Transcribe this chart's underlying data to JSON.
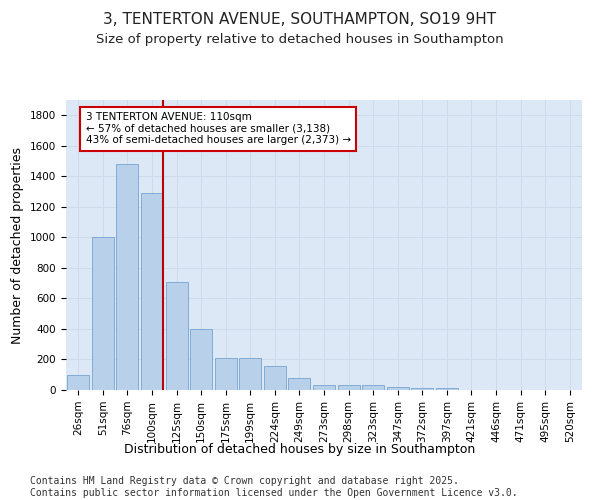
{
  "title": "3, TENTERTON AVENUE, SOUTHAMPTON, SO19 9HT",
  "subtitle": "Size of property relative to detached houses in Southampton",
  "xlabel": "Distribution of detached houses by size in Southampton",
  "ylabel": "Number of detached properties",
  "categories": [
    "26sqm",
    "51sqm",
    "76sqm",
    "100sqm",
    "125sqm",
    "150sqm",
    "175sqm",
    "199sqm",
    "224sqm",
    "249sqm",
    "273sqm",
    "298sqm",
    "323sqm",
    "347sqm",
    "372sqm",
    "397sqm",
    "421sqm",
    "446sqm",
    "471sqm",
    "495sqm",
    "520sqm"
  ],
  "values": [
    100,
    1000,
    1480,
    1290,
    710,
    400,
    210,
    210,
    155,
    80,
    30,
    30,
    30,
    20,
    15,
    10,
    0,
    0,
    0,
    0,
    0
  ],
  "bar_color": "#b8d0ea",
  "bar_edge_color": "#6699cc",
  "grid_color": "#ccdaeb",
  "background_color": "#dce8f5",
  "vline_color": "#bb0000",
  "vline_index": 3,
  "annotation_text": "3 TENTERTON AVENUE: 110sqm\n← 57% of detached houses are smaller (3,138)\n43% of semi-detached houses are larger (2,373) →",
  "annotation_box_color": "#cc0000",
  "ylim": [
    0,
    1900
  ],
  "yticks": [
    0,
    200,
    400,
    600,
    800,
    1000,
    1200,
    1400,
    1600,
    1800
  ],
  "footer_text": "Contains HM Land Registry data © Crown copyright and database right 2025.\nContains public sector information licensed under the Open Government Licence v3.0.",
  "title_fontsize": 11,
  "subtitle_fontsize": 9.5,
  "label_fontsize": 9,
  "tick_fontsize": 7.5,
  "footer_fontsize": 7
}
